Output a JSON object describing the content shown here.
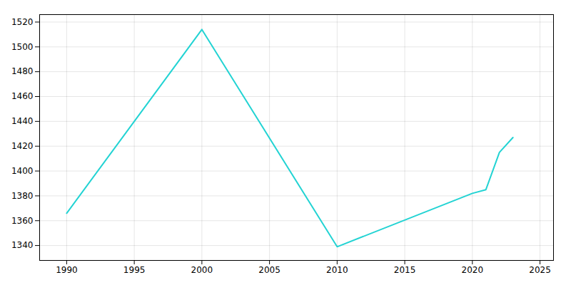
{
  "chart_data": {
    "type": "line",
    "x": [
      1990,
      2000,
      2010,
      2020,
      2021,
      2022,
      2023
    ],
    "values": [
      1366,
      1514,
      1339,
      1382,
      1385,
      1415,
      1427
    ],
    "color": "#22d3d3",
    "xlim": [
      1988,
      2026
    ],
    "xticks": [
      1990,
      1995,
      2000,
      2005,
      2010,
      2015,
      2020,
      2025
    ],
    "ylim": [
      1328,
      1526
    ],
    "yticks": [
      1340,
      1360,
      1380,
      1400,
      1420,
      1440,
      1460,
      1480,
      1500,
      1520
    ],
    "grid": true
  }
}
